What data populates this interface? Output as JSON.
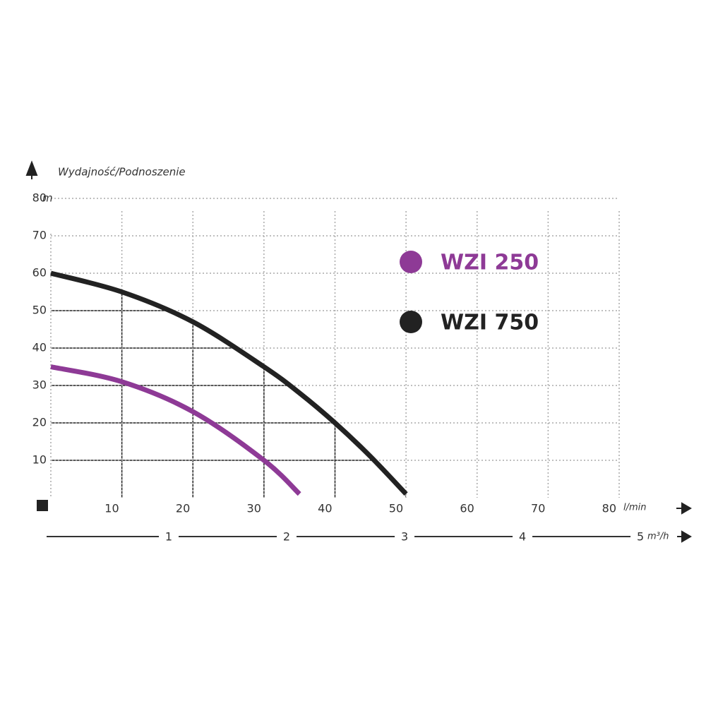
{
  "chart_data": {
    "type": "line",
    "y_title": "Wydajność/Podnoszenie",
    "y_unit": "m",
    "x_unit": "l/min",
    "x2_unit": "m³/h",
    "xlim": [
      0,
      80
    ],
    "xticks": [
      10,
      20,
      30,
      40,
      50,
      60,
      70,
      80
    ],
    "ylim": [
      0,
      80
    ],
    "yticks": [
      10,
      20,
      30,
      40,
      50,
      60,
      70,
      80
    ],
    "x2lim": [
      0,
      4.82
    ],
    "x2ticks": [
      1,
      2,
      3,
      4,
      5
    ],
    "grid": true,
    "x": [
      0,
      10,
      20,
      30,
      35,
      40,
      45,
      50
    ],
    "series": [
      {
        "name": "WZI 250",
        "color": "#8e3a96",
        "values": [
          35,
          31,
          23,
          10,
          1,
          null,
          null,
          null
        ]
      },
      {
        "name": "WZI 750",
        "color": "#222222",
        "values": [
          60,
          55,
          47,
          35,
          28,
          20,
          11,
          1
        ]
      }
    ]
  }
}
